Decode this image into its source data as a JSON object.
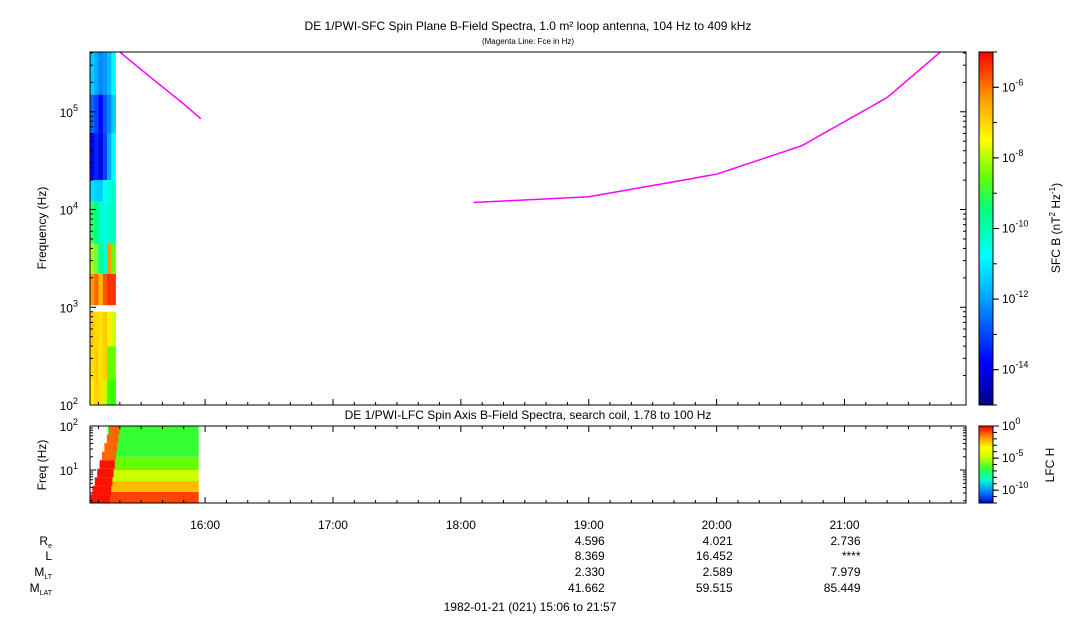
{
  "chart_data": [
    {
      "type": "heatmap",
      "title": "DE 1/PWI-SFC  Spin Plane B-Field Spectra, 1.0 m² loop antenna, 104 Hz to 409 kHz",
      "subtitle": "(Magenta Line: Fce in Hz)",
      "ylabel": "Frequency (Hz)",
      "yscale": "log",
      "ylim": [
        100,
        409000
      ],
      "y_ticks": [
        {
          "value": 100,
          "base": "10",
          "exp": "2"
        },
        {
          "value": 1000,
          "base": "10",
          "exp": "3"
        },
        {
          "value": 10000,
          "base": "10",
          "exp": "4"
        },
        {
          "value": 100000,
          "base": "10",
          "exp": "5"
        }
      ],
      "colorbar": {
        "label": "SFC B (nT",
        "label_exp": "2",
        "label_mid": " Hz",
        "label_exp2": "-1",
        "label_end": ")",
        "scale": "log",
        "range": [
          -15,
          -5
        ],
        "ticks": [
          {
            "value": -6,
            "base": "10",
            "exp": "-6"
          },
          {
            "value": -8,
            "base": "10",
            "exp": "-8"
          },
          {
            "value": -10,
            "base": "10",
            "exp": "-10"
          },
          {
            "value": -12,
            "base": "10",
            "exp": "-12"
          },
          {
            "value": -14,
            "base": "10",
            "exp": "-14"
          }
        ]
      },
      "data_coverage": {
        "start": "15:06",
        "end": "15:18"
      },
      "series": [
        {
          "name": "Fce",
          "color": "#ff00ff",
          "segments": [
            {
              "x": [
                "15:20",
                "15:35",
                "15:50",
                "15:58"
              ],
              "y": [
                409000,
                220000,
                120000,
                85000
              ]
            },
            {
              "x": [
                "18:06",
                "19:00",
                "20:00",
                "20:40",
                "21:20",
                "21:45"
              ],
              "y": [
                11800,
                13500,
                23000,
                45000,
                140000,
                409000
              ]
            }
          ]
        }
      ]
    },
    {
      "type": "heatmap",
      "title": "DE 1/PWI-LFC  Spin Axis B-Field Spectra, search coil, 1.78 to 100 Hz",
      "ylabel": "Freq (Hz)",
      "yscale": "log",
      "ylim": [
        1.78,
        100
      ],
      "y_ticks": [
        {
          "value": 10,
          "base": "10",
          "exp": "1"
        },
        {
          "value": 100,
          "base": "10",
          "exp": "2"
        }
      ],
      "colorbar": {
        "label": "LFC H",
        "scale": "log",
        "range": [
          -12,
          0
        ],
        "ticks": [
          {
            "value": 0,
            "base": "10",
            "exp": "0"
          },
          {
            "value": -5,
            "base": "10",
            "exp": "-5"
          },
          {
            "value": -10,
            "base": "10",
            "exp": "-10"
          }
        ]
      },
      "data_coverage": {
        "start": "15:06",
        "end": "15:57"
      }
    }
  ],
  "time_axis": {
    "range": [
      "15:06",
      "21:57"
    ],
    "ticks": [
      "16:00",
      "17:00",
      "18:00",
      "19:00",
      "20:00",
      "21:00"
    ]
  },
  "ephemeris": {
    "rows": [
      {
        "label": "R",
        "sub": "e",
        "values": [
          "4.596",
          "4.021",
          "2.736"
        ]
      },
      {
        "label": "L",
        "sub": "",
        "values": [
          "8.369",
          "16.452",
          "****"
        ]
      },
      {
        "label": "M",
        "sub": "LT",
        "values": [
          "2.330",
          "2.589",
          "7.979"
        ]
      },
      {
        "label": "M",
        "sub": "LAT",
        "values": [
          "41.662",
          "59.515",
          "85.449"
        ]
      }
    ],
    "columns": [
      "19:00",
      "20:00",
      "21:00"
    ]
  },
  "footer": "1982-01-21 (021) 15:06 to 21:57"
}
